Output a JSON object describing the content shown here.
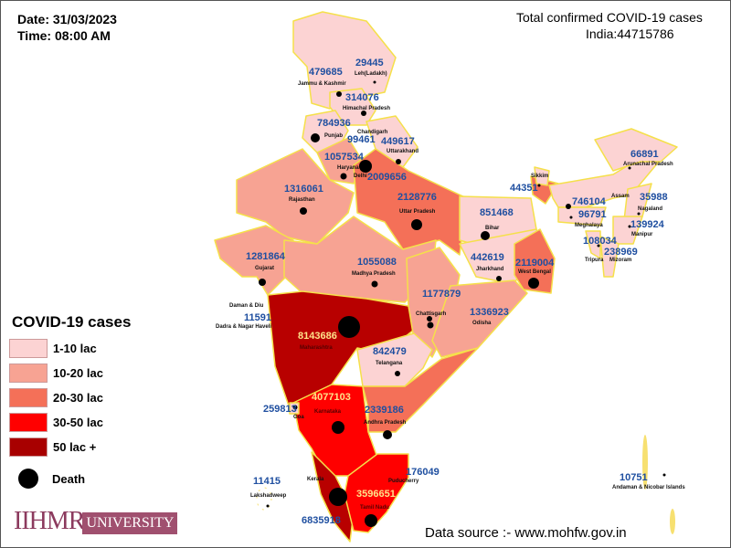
{
  "header": {
    "date": "Date: 31/03/2023",
    "time": "Time: 08:00 AM",
    "title": "Total confirmed COVID-19 cases",
    "total": "India:44715786"
  },
  "legend": {
    "title": "COVID-19 cases",
    "items": [
      {
        "label": "1-10 lac",
        "color": "#fcd3d3"
      },
      {
        "label": "10-20 lac",
        "color": "#f7a393"
      },
      {
        "label": "20-30 lac",
        "color": "#f47058"
      },
      {
        "label": "30-50 lac",
        "color": "#ff0000"
      },
      {
        "label": "50 lac +",
        "color": "#b80000"
      }
    ],
    "death": "Death"
  },
  "states": {
    "ladakh": {
      "name": "Leh(Ladakh)",
      "cases": "29445"
    },
    "jk": {
      "name": "Jammu & Kashmir",
      "cases": "479685"
    },
    "hp": {
      "name": "Himachal Pradesh",
      "cases": "314076"
    },
    "punjab": {
      "name": "Punjab",
      "cases": "784936"
    },
    "chandigarh": {
      "name": "Chandigarh",
      "cases": "99461"
    },
    "uttarakhand": {
      "name": "Uttarakhand",
      "cases": "449617"
    },
    "haryana": {
      "name": "Haryana",
      "cases": "1057534"
    },
    "delhi": {
      "name": "Delhi",
      "cases": "2009656"
    },
    "rajasthan": {
      "name": "Rajasthan",
      "cases": "1316061"
    },
    "up": {
      "name": "Uttar Pradesh",
      "cases": "2128776"
    },
    "gujarat": {
      "name": "Gujarat",
      "cases": "1281864"
    },
    "mp": {
      "name": "Madhya Pradesh",
      "cases": "1055088"
    },
    "dnh": {
      "name": "Dadra & Nagar Haveli",
      "cases": "11591"
    },
    "daman": {
      "name": "Daman & Diu"
    },
    "maharashtra": {
      "name": "Maharashtra",
      "cases": "8143686"
    },
    "chhattisgarh": {
      "name": "Chattisgarh",
      "cases": "1177879"
    },
    "odisha": {
      "name": "Odisha",
      "cases": "1336923"
    },
    "telangana": {
      "name": "Telangana",
      "cases": "842479"
    },
    "goa": {
      "name": "Goa",
      "cases": "259813"
    },
    "karnataka": {
      "name": "Karnataka",
      "cases": "4077103"
    },
    "ap": {
      "name": "Andhra Pradesh",
      "cases": "2339186"
    },
    "kerala": {
      "name": "Kerala",
      "cases": "6835918"
    },
    "tn": {
      "name": "Tamil Nadu",
      "cases": "3596651"
    },
    "puducherry": {
      "name": "Puducherry",
      "cases": "176049"
    },
    "lakshadweep": {
      "name": "Lakshadweep",
      "cases": "11415"
    },
    "bihar": {
      "name": "Bihar",
      "cases": "851468"
    },
    "jharkhand": {
      "name": "Jharkhand",
      "cases": "442619"
    },
    "wb": {
      "name": "West Bengal",
      "cases": "2119004"
    },
    "sikkim": {
      "name": "Sikkim",
      "cases": "44351"
    },
    "assam": {
      "name": "Assam",
      "cases": "746104"
    },
    "arunachal": {
      "name": "Arunachal Pradesh",
      "cases": "66891"
    },
    "nagaland": {
      "name": "Nagaland",
      "cases": "35988"
    },
    "meghalaya": {
      "name": "Meghalaya",
      "cases": "96791"
    },
    "manipur": {
      "name": "Manipur",
      "cases": "139924"
    },
    "tripura": {
      "name": "Tripura",
      "cases": "108034"
    },
    "mizoram": {
      "name": "Mizoram",
      "cases": "238969"
    },
    "andaman": {
      "name": "Andaman & Nicobar Islands",
      "cases": "10751"
    }
  },
  "logo": {
    "brand": "IIHMR",
    "suffix": "UNIVERSITY"
  },
  "source": "Data source :- www.mohfw.gov.in"
}
